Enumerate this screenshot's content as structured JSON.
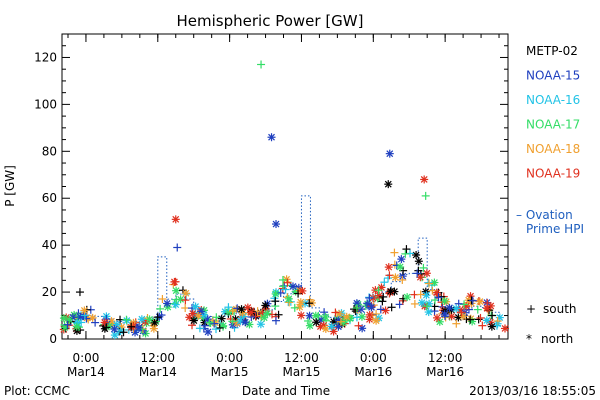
{
  "chart_data": {
    "type": "scatter",
    "title": "Hemispheric Power [GW]",
    "ylabel": "P [GW]",
    "xlabel": "Date and Time",
    "ylim": [
      0,
      130
    ],
    "yticks": [
      0,
      20,
      40,
      60,
      80,
      100,
      120
    ],
    "xlim": [
      "2013-03-13T20:00",
      "2013-03-16T22:30"
    ],
    "xticks": [
      {
        "time": "2013-03-14T00:00",
        "line1": "0:00",
        "line2": "Mar14"
      },
      {
        "time": "2013-03-14T12:00",
        "line1": "12:00",
        "line2": "Mar14"
      },
      {
        "time": "2013-03-15T00:00",
        "line1": "0:00",
        "line2": "Mar15"
      },
      {
        "time": "2013-03-15T12:00",
        "line1": "12:00",
        "line2": "Mar15"
      },
      {
        "time": "2013-03-16T00:00",
        "line1": "0:00",
        "line2": "Mar16"
      },
      {
        "time": "2013-03-16T12:00",
        "line1": "12:00",
        "line2": "Mar16"
      }
    ],
    "series": [
      {
        "name": "METP-02",
        "color": "#000000"
      },
      {
        "name": "NOAA-15",
        "color": "#1f3fbf"
      },
      {
        "name": "NOAA-16",
        "color": "#22c3e6"
      },
      {
        "name": "NOAA-17",
        "color": "#33dd66"
      },
      {
        "name": "NOAA-18",
        "color": "#f0a030"
      },
      {
        "name": "NOAA-19",
        "color": "#e0301e"
      }
    ],
    "ovation": {
      "label_line1": "– Ovation",
      "label_line2": "Prime HPI",
      "color": "#1f5fbf"
    },
    "markers": {
      "south_symbol": "+",
      "south_label": "south",
      "north_symbol": "*",
      "north_label": "north"
    },
    "peaks": [
      {
        "series": "NOAA-17",
        "hemisphere": "south",
        "time": "2013-03-15T05:15",
        "value": 117
      },
      {
        "series": "NOAA-15",
        "hemisphere": "north",
        "time": "2013-03-15T07:00",
        "value": 86
      },
      {
        "series": "NOAA-15",
        "hemisphere": "north",
        "time": "2013-03-16T02:45",
        "value": 79
      },
      {
        "series": "NOAA-19",
        "hemisphere": "north",
        "time": "2013-03-16T08:30",
        "value": 68
      },
      {
        "series": "METP-02",
        "hemisphere": "north",
        "time": "2013-03-16T02:30",
        "value": 66
      },
      {
        "series": "NOAA-17",
        "hemisphere": "south",
        "time": "2013-03-16T08:45",
        "value": 61
      },
      {
        "series": "NOAA-19",
        "hemisphere": "north",
        "time": "2013-03-14T15:00",
        "value": 51
      },
      {
        "series": "NOAA-15",
        "hemisphere": "north",
        "time": "2013-03-15T07:45",
        "value": 49
      },
      {
        "series": "NOAA-15",
        "hemisphere": "south",
        "time": "2013-03-14T15:15",
        "value": 39
      },
      {
        "series": "METP-02",
        "hemisphere": "south",
        "time": "2013-03-13T23:00",
        "value": 20
      }
    ]
  },
  "footer": {
    "left": "Plot: CCMC",
    "center": "Date and Time",
    "right": "2013/03/16 18:55:05"
  }
}
